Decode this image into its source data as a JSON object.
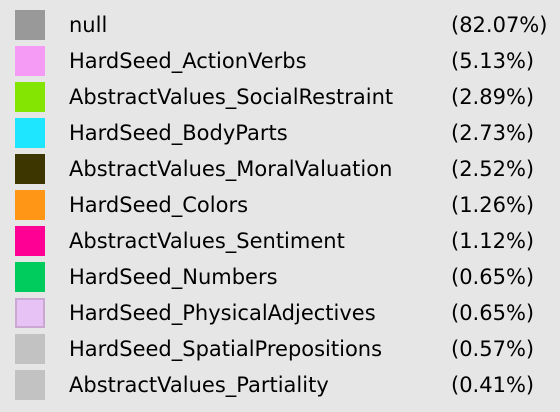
{
  "legend": {
    "items": [
      {
        "label": "null",
        "percent": "(82.07%)",
        "color": "#999999",
        "border": "#999999"
      },
      {
        "label": "HardSeed_ActionVerbs",
        "percent": "(5.13%)",
        "color": "#f59af5",
        "border": "#f59af5"
      },
      {
        "label": "AbstractValues_SocialRestraint",
        "percent": "(2.89%)",
        "color": "#84e402",
        "border": "#84e402"
      },
      {
        "label": "HardSeed_BodyParts",
        "percent": "(2.73%)",
        "color": "#1ee6ff",
        "border": "#1ee6ff"
      },
      {
        "label": "AbstractValues_MoralValuation",
        "percent": "(2.52%)",
        "color": "#3e3600",
        "border": "#3e3600"
      },
      {
        "label": "HardSeed_Colors",
        "percent": "(1.26%)",
        "color": "#ff9616",
        "border": "#ff9616"
      },
      {
        "label": "AbstractValues_Sentiment",
        "percent": "(1.12%)",
        "color": "#ff0095",
        "border": "#ff0095"
      },
      {
        "label": "HardSeed_Numbers",
        "percent": "(0.65%)",
        "color": "#00cc5e",
        "border": "#00cc5e"
      },
      {
        "label": "HardSeed_PhysicalAdjectives",
        "percent": "(0.65%)",
        "color": "#e6c2f5",
        "border": "#c9a8d2"
      },
      {
        "label": "HardSeed_SpatialPrepositions",
        "percent": "(0.57%)",
        "color": "#c2c2c2",
        "border": "#c2c2c2"
      },
      {
        "label": "AbstractValues_Partiality",
        "percent": "(0.41%)",
        "color": "#c2c2c2",
        "border": "#c2c2c2"
      }
    ]
  }
}
